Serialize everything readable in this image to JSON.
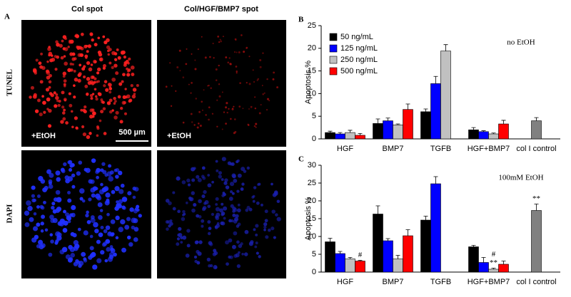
{
  "panel_a": {
    "label": "A",
    "columns": [
      "Col spot",
      "Col/HGF/BMP7 spot"
    ],
    "rows": [
      "TUNEL",
      "DAPI"
    ],
    "treatment": "+EtOH",
    "scale_bar": "500 µm"
  },
  "chart_data": [
    {
      "type": "bar",
      "label": "B",
      "note": "no EtOH",
      "ylabel": "Apoptosis %",
      "categories": [
        "HGF",
        "BMP7",
        "TGFB",
        "HGF+BMP7",
        "col I control"
      ],
      "series": [
        {
          "name": "50 ng/mL",
          "color": "#000000",
          "values": [
            1.4,
            3.4,
            6.0,
            2.0,
            null
          ],
          "errors": [
            0.3,
            1.0,
            0.6,
            0.5,
            null
          ]
        },
        {
          "name": "125 ng/mL",
          "color": "#0000ff",
          "values": [
            1.1,
            4.0,
            12.2,
            1.6,
            null
          ],
          "errors": [
            0.3,
            0.6,
            1.6,
            0.2,
            null
          ]
        },
        {
          "name": "250 ng/mL",
          "color": "#c0c0c0",
          "values": [
            1.4,
            3.1,
            19.4,
            1.1,
            null
          ],
          "errors": [
            0.5,
            0.2,
            1.4,
            0.2,
            null
          ]
        },
        {
          "name": "500 ng/mL",
          "color": "#ff0000",
          "values": [
            0.8,
            6.5,
            null,
            3.3,
            null
          ],
          "errors": [
            0.4,
            1.2,
            null,
            0.8,
            null
          ]
        },
        {
          "color": "#808080",
          "values": [
            null,
            null,
            null,
            null,
            4.0
          ],
          "errors": [
            null,
            null,
            null,
            null,
            0.7
          ]
        }
      ],
      "ylim": [
        0,
        25
      ],
      "yticks": [
        0,
        5,
        10,
        15,
        20,
        25
      ],
      "legend": "top-left"
    },
    {
      "type": "bar",
      "label": "C",
      "note": "100mM EtOH",
      "ylabel": "Apoptosis %",
      "categories": [
        "HGF",
        "BMP7",
        "TGFB",
        "HGF+BMP7",
        "col I control"
      ],
      "series": [
        {
          "color": "#000000",
          "values": [
            8.5,
            16.3,
            14.6,
            7.1,
            null
          ],
          "errors": [
            1.0,
            2.3,
            1.1,
            0.4,
            null
          ]
        },
        {
          "color": "#0000ff",
          "values": [
            5.2,
            8.8,
            24.8,
            2.7,
            null
          ],
          "errors": [
            0.6,
            0.6,
            2.0,
            1.4,
            null
          ]
        },
        {
          "color": "#c0c0c0",
          "values": [
            3.7,
            3.7,
            null,
            0.8,
            null
          ],
          "errors": [
            0.4,
            1.0,
            null,
            0.3,
            null
          ]
        },
        {
          "color": "#ff0000",
          "values": [
            3.1,
            10.2,
            null,
            2.2,
            null
          ],
          "errors": [
            0.2,
            1.7,
            null,
            0.9,
            null
          ]
        },
        {
          "color": "#808080",
          "values": [
            null,
            null,
            null,
            null,
            17.3
          ],
          "errors": [
            null,
            null,
            null,
            null,
            1.8
          ]
        }
      ],
      "annotations": [
        {
          "text": "#",
          "category": 0,
          "series": 3
        },
        {
          "text": "**",
          "category": 3,
          "series": 2
        },
        {
          "text": "#",
          "category": 3,
          "series": 2
        },
        {
          "text": "**",
          "category": 4,
          "series": 4
        }
      ],
      "ylim": [
        0,
        30
      ],
      "yticks": [
        0,
        5,
        10,
        15,
        20,
        25,
        30
      ]
    }
  ]
}
